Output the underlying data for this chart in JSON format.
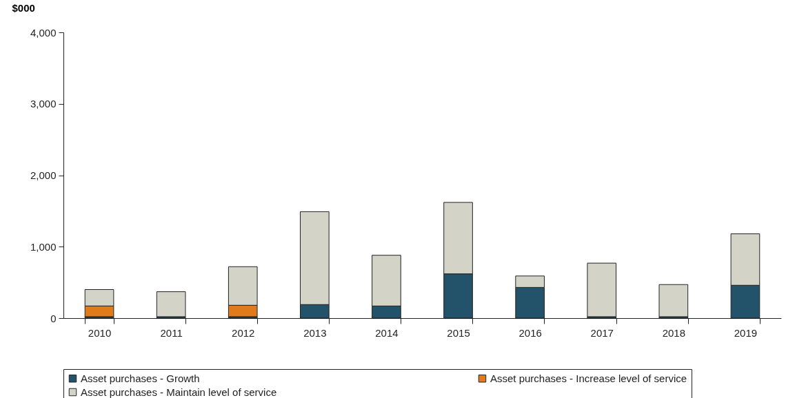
{
  "chart_data": {
    "type": "bar",
    "stacked": true,
    "ylabel": "$000",
    "categories": [
      "2010",
      "2011",
      "2012",
      "2013",
      "2014",
      "2015",
      "2016",
      "2017",
      "2018",
      "2019"
    ],
    "ylim": [
      0,
      4000
    ],
    "yticks": [
      {
        "value": 0,
        "label": "0"
      },
      {
        "value": 1000,
        "label": "1,000"
      },
      {
        "value": 2000,
        "label": "2,000"
      },
      {
        "value": 3000,
        "label": "3,000"
      },
      {
        "value": 4000,
        "label": "4,000"
      }
    ],
    "legend": "bottom",
    "series": [
      {
        "name": "Asset purchases - Growth",
        "color": "#23536a",
        "values": [
          20,
          20,
          20,
          190,
          170,
          620,
          430,
          20,
          20,
          460
        ]
      },
      {
        "name": "Asset purchases - Increase level of service",
        "color": "#e07b1c",
        "values": [
          150,
          null,
          160,
          null,
          null,
          null,
          null,
          null,
          null,
          null
        ]
      },
      {
        "name": "Asset purchases - Maintain level of service",
        "color": "#d3d4c7",
        "values": [
          230,
          350,
          540,
          1300,
          710,
          1000,
          160,
          750,
          450,
          720
        ]
      }
    ]
  }
}
